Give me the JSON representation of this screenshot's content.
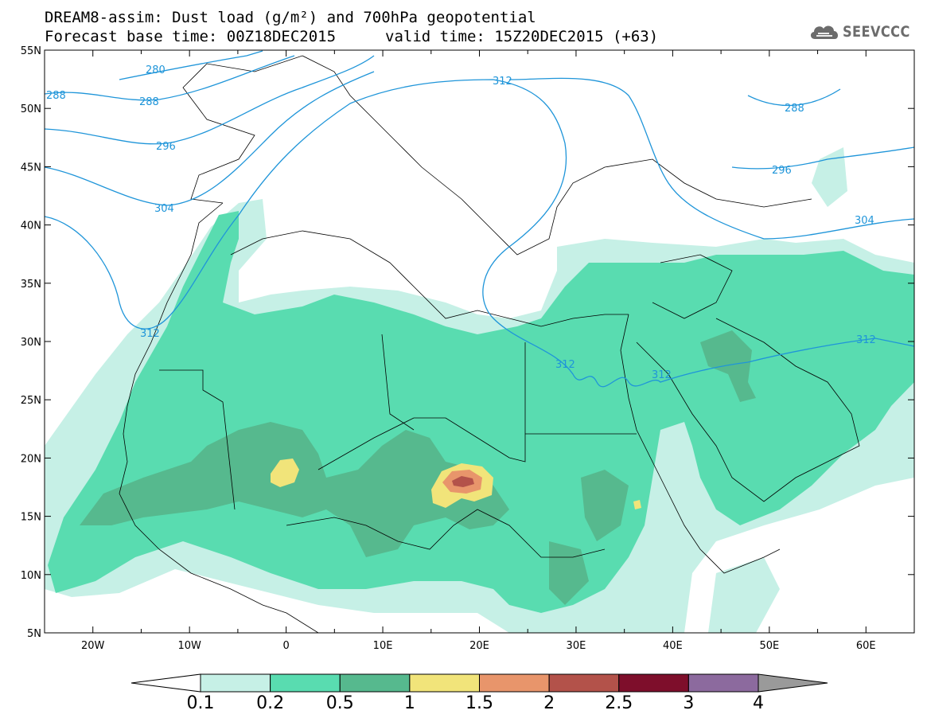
{
  "title": {
    "line1": "DREAM8-assim: Dust load (g/m²) and 700hPa geopotential",
    "line2_base": "Forecast base time: 00Z18DEC2015",
    "line2_valid": "valid time: 15Z20DEC2015 (+63)"
  },
  "logo": {
    "text": "SEEVCCC",
    "icon": "cloud-logo-icon"
  },
  "map": {
    "lon_range": [
      -25,
      65
    ],
    "lat_range": [
      5,
      55
    ],
    "lat_labels": [
      "55N",
      "50N",
      "45N",
      "40N",
      "35N",
      "30N",
      "25N",
      "20N",
      "15N",
      "10N",
      "5N"
    ],
    "lon_labels": [
      "20W",
      "10W",
      "0",
      "10E",
      "20E",
      "30E",
      "40E",
      "50E",
      "60E"
    ],
    "contour_color": "#1f95d9",
    "contour_labels": [
      "280",
      "288",
      "288",
      "288",
      "296",
      "296",
      "304",
      "304",
      "312",
      "312",
      "312",
      "312",
      "312"
    ]
  },
  "colorbar": {
    "colors": [
      "#ffffff",
      "#c6f0e6",
      "#59dcb0",
      "#56b98e",
      "#f1e47a",
      "#e8956b",
      "#b3524a",
      "#7e0e2b",
      "#8c6a9e",
      "#9a9a9a"
    ],
    "labels": [
      "0.1",
      "0.2",
      "0.5",
      "1",
      "1.5",
      "2",
      "2.5",
      "3",
      "4"
    ]
  }
}
